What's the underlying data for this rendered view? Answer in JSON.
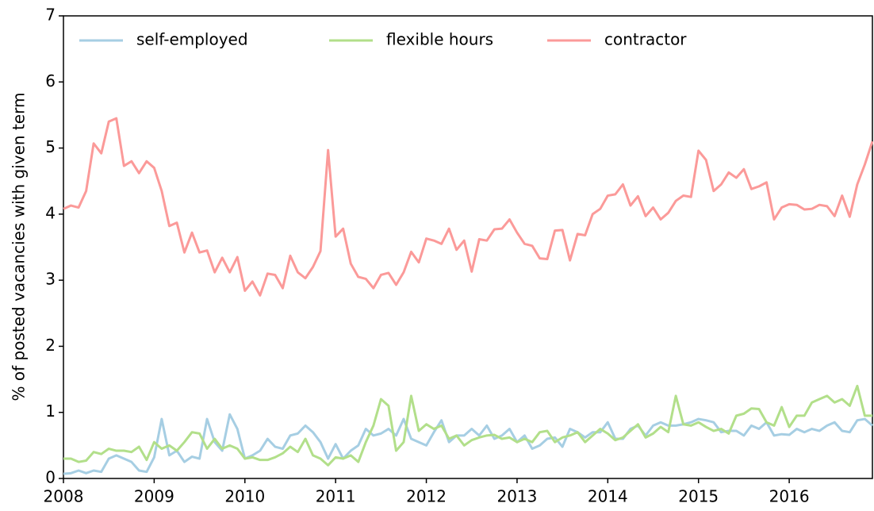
{
  "chart_data": {
    "type": "line",
    "ylabel": "% of posted vacancies with given term",
    "x": [
      2008.0,
      2008.083,
      2008.167,
      2008.25,
      2008.333,
      2008.417,
      2008.5,
      2008.583,
      2008.667,
      2008.75,
      2008.833,
      2008.917,
      2009.0,
      2009.083,
      2009.167,
      2009.25,
      2009.333,
      2009.417,
      2009.5,
      2009.583,
      2009.667,
      2009.75,
      2009.833,
      2009.917,
      2010.0,
      2010.083,
      2010.167,
      2010.25,
      2010.333,
      2010.417,
      2010.5,
      2010.583,
      2010.667,
      2010.75,
      2010.833,
      2010.917,
      2011.0,
      2011.083,
      2011.167,
      2011.25,
      2011.333,
      2011.417,
      2011.5,
      2011.583,
      2011.667,
      2011.75,
      2011.833,
      2011.917,
      2012.0,
      2012.083,
      2012.167,
      2012.25,
      2012.333,
      2012.417,
      2012.5,
      2012.583,
      2012.667,
      2012.75,
      2012.833,
      2012.917,
      2013.0,
      2013.083,
      2013.167,
      2013.25,
      2013.333,
      2013.417,
      2013.5,
      2013.583,
      2013.667,
      2013.75,
      2013.833,
      2013.917,
      2014.0,
      2014.083,
      2014.167,
      2014.25,
      2014.333,
      2014.417,
      2014.5,
      2014.583,
      2014.667,
      2014.75,
      2014.833,
      2014.917,
      2015.0,
      2015.083,
      2015.167,
      2015.25,
      2015.333,
      2015.417,
      2015.5,
      2015.583,
      2015.667,
      2015.75,
      2015.833,
      2015.917,
      2016.0,
      2016.083,
      2016.167,
      2016.25,
      2016.333,
      2016.417,
      2016.5,
      2016.583,
      2016.667,
      2016.75,
      2016.833,
      2016.917
    ],
    "series": [
      {
        "name": "self-employed",
        "color": "#a6cee3",
        "values": [
          0.07,
          0.08,
          0.12,
          0.08,
          0.12,
          0.1,
          0.3,
          0.35,
          0.3,
          0.25,
          0.12,
          0.1,
          0.32,
          0.9,
          0.35,
          0.42,
          0.25,
          0.33,
          0.3,
          0.9,
          0.55,
          0.42,
          0.97,
          0.75,
          0.3,
          0.35,
          0.42,
          0.6,
          0.48,
          0.45,
          0.65,
          0.68,
          0.8,
          0.7,
          0.55,
          0.3,
          0.52,
          0.3,
          0.42,
          0.5,
          0.75,
          0.65,
          0.68,
          0.75,
          0.65,
          0.9,
          0.6,
          0.55,
          0.5,
          0.7,
          0.88,
          0.55,
          0.65,
          0.65,
          0.75,
          0.65,
          0.8,
          0.6,
          0.65,
          0.75,
          0.55,
          0.65,
          0.45,
          0.5,
          0.6,
          0.62,
          0.48,
          0.75,
          0.7,
          0.62,
          0.7,
          0.7,
          0.85,
          0.6,
          0.6,
          0.75,
          0.8,
          0.65,
          0.8,
          0.85,
          0.8,
          0.8,
          0.82,
          0.85,
          0.9,
          0.88,
          0.85,
          0.7,
          0.72,
          0.72,
          0.65,
          0.8,
          0.75,
          0.85,
          0.65,
          0.67,
          0.66,
          0.75,
          0.7,
          0.75,
          0.72,
          0.8,
          0.85,
          0.72,
          0.7,
          0.88,
          0.9,
          0.8
        ]
      },
      {
        "name": "flexible hours",
        "color": "#b2df8a",
        "values": [
          0.3,
          0.3,
          0.25,
          0.27,
          0.4,
          0.37,
          0.45,
          0.42,
          0.42,
          0.4,
          0.48,
          0.28,
          0.55,
          0.45,
          0.5,
          0.42,
          0.55,
          0.7,
          0.68,
          0.45,
          0.6,
          0.45,
          0.5,
          0.45,
          0.3,
          0.32,
          0.28,
          0.28,
          0.32,
          0.38,
          0.48,
          0.4,
          0.6,
          0.35,
          0.3,
          0.2,
          0.32,
          0.3,
          0.35,
          0.25,
          0.55,
          0.8,
          1.2,
          1.1,
          0.42,
          0.55,
          1.25,
          0.72,
          0.82,
          0.75,
          0.8,
          0.6,
          0.65,
          0.5,
          0.58,
          0.62,
          0.65,
          0.66,
          0.6,
          0.62,
          0.55,
          0.6,
          0.55,
          0.7,
          0.72,
          0.55,
          0.62,
          0.65,
          0.7,
          0.55,
          0.65,
          0.75,
          0.68,
          0.58,
          0.62,
          0.72,
          0.82,
          0.62,
          0.68,
          0.78,
          0.7,
          1.25,
          0.82,
          0.8,
          0.85,
          0.78,
          0.72,
          0.75,
          0.68,
          0.95,
          0.98,
          1.06,
          1.05,
          0.85,
          0.8,
          1.08,
          0.78,
          0.95,
          0.95,
          1.15,
          1.2,
          1.25,
          1.15,
          1.2,
          1.1,
          1.4,
          0.95,
          0.95
        ]
      },
      {
        "name": "contractor",
        "color": "#fb9a99",
        "values": [
          4.08,
          4.13,
          4.1,
          4.35,
          5.07,
          4.92,
          5.4,
          5.45,
          4.73,
          4.8,
          4.62,
          4.8,
          4.7,
          4.35,
          3.82,
          3.87,
          3.42,
          3.72,
          3.42,
          3.45,
          3.12,
          3.34,
          3.12,
          3.35,
          2.84,
          2.98,
          2.77,
          3.1,
          3.08,
          2.88,
          3.37,
          3.12,
          3.03,
          3.2,
          3.44,
          4.97,
          3.66,
          3.78,
          3.25,
          3.05,
          3.02,
          2.88,
          3.08,
          3.11,
          2.93,
          3.12,
          3.43,
          3.27,
          3.63,
          3.6,
          3.55,
          3.78,
          3.46,
          3.6,
          3.13,
          3.62,
          3.6,
          3.77,
          3.78,
          3.92,
          3.72,
          3.55,
          3.52,
          3.33,
          3.32,
          3.75,
          3.76,
          3.3,
          3.7,
          3.68,
          4.0,
          4.08,
          4.28,
          4.3,
          4.45,
          4.13,
          4.27,
          3.97,
          4.1,
          3.92,
          4.02,
          4.2,
          4.28,
          4.26,
          4.96,
          4.82,
          4.35,
          4.45,
          4.63,
          4.55,
          4.68,
          4.38,
          4.42,
          4.48,
          3.92,
          4.1,
          4.15,
          4.14,
          4.07,
          4.08,
          4.14,
          4.12,
          3.97,
          4.28,
          3.96,
          4.45,
          4.75,
          5.1
        ]
      }
    ],
    "xlim": [
      2008.0,
      2016.917
    ],
    "xticks": [
      2008,
      2009,
      2010,
      2011,
      2012,
      2013,
      2014,
      2015,
      2016
    ],
    "ylim": [
      0,
      7
    ],
    "yticks": [
      0,
      1,
      2,
      3,
      4,
      5,
      6,
      7
    ],
    "grid": false,
    "legend": "top"
  }
}
